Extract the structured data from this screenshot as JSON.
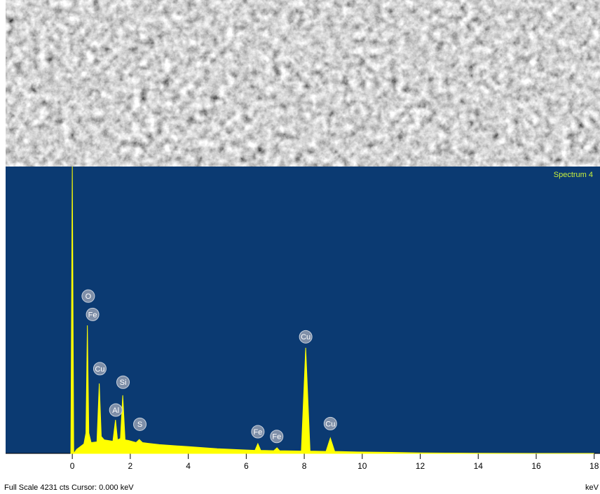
{
  "chart_data": {
    "type": "area",
    "title": "Spectrum 4",
    "footer": "Full Scale 4231 cts  Cursor: 0.000 keV",
    "x_label": "keV",
    "color": "#ffff00",
    "background": "#0b3a72",
    "xlim": [
      -2.3,
      18.2
    ],
    "ylim": [
      0,
      4231
    ],
    "xticks": [
      0,
      2,
      4,
      6,
      8,
      10,
      12,
      14,
      16,
      18
    ],
    "x": [
      -0.05,
      0,
      0.05,
      0.15,
      0.4,
      0.47,
      0.52,
      0.57,
      0.65,
      0.85,
      0.93,
      1.0,
      1.1,
      1.4,
      1.49,
      1.56,
      1.66,
      1.74,
      1.82,
      1.95,
      2.2,
      2.31,
      2.42,
      2.6,
      3,
      4,
      5,
      6,
      6.3,
      6.4,
      6.5,
      6.95,
      7.06,
      7.15,
      7.9,
      8.05,
      8.2,
      8.75,
      8.9,
      9.05,
      10,
      11,
      12,
      13,
      14,
      16,
      18
    ],
    "values": [
      0,
      4231,
      0,
      60,
      140,
      300,
      1888,
      300,
      160,
      170,
      1032,
      250,
      200,
      180,
      495,
      200,
      220,
      857,
      200,
      190,
      160,
      206,
      160,
      150,
      130,
      100,
      70,
      50,
      45,
      144,
      45,
      40,
      83,
      40,
      35,
      1558,
      35,
      30,
      227,
      30,
      20,
      15,
      8,
      5,
      3,
      0,
      0
    ],
    "peak_labels": [
      {
        "label": "O",
        "x": 0.55,
        "y": 2320
      },
      {
        "label": "Fe",
        "x": 0.7,
        "y": 2050
      },
      {
        "label": "Cu",
        "x": 0.95,
        "y": 1250
      },
      {
        "label": "Si",
        "x": 1.75,
        "y": 1050
      },
      {
        "label": "Al",
        "x": 1.5,
        "y": 640
      },
      {
        "label": "S",
        "x": 2.33,
        "y": 430
      },
      {
        "label": "Fe",
        "x": 6.4,
        "y": 320
      },
      {
        "label": "Fe",
        "x": 7.05,
        "y": 250
      },
      {
        "label": "Cu",
        "x": 8.05,
        "y": 1720
      },
      {
        "label": "Cu",
        "x": 8.9,
        "y": 440
      }
    ]
  }
}
